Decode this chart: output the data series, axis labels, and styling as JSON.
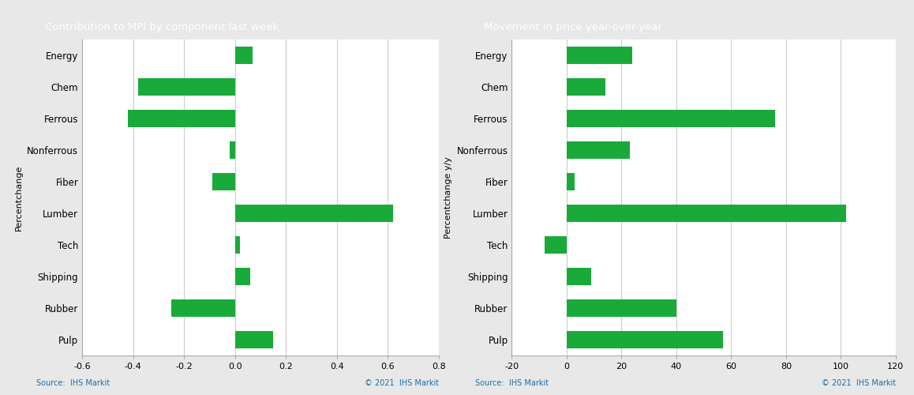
{
  "left_title": "Contribution to MPI by component last week",
  "right_title": "Movement in price year-over-year",
  "categories": [
    "Energy",
    "Chem",
    "Ferrous",
    "Nonferrous",
    "Fiber",
    "Lumber",
    "Tech",
    "Shipping",
    "Rubber",
    "Pulp"
  ],
  "left_values": [
    0.07,
    -0.38,
    -0.42,
    -0.02,
    -0.09,
    0.62,
    0.02,
    0.06,
    -0.25,
    0.15
  ],
  "right_values": [
    24,
    14,
    76,
    23,
    3,
    102,
    -8,
    9,
    40,
    57
  ],
  "bar_color": "#1aaa3a",
  "left_xlim": [
    -0.6,
    0.8
  ],
  "left_xticks": [
    -0.6,
    -0.4,
    -0.2,
    0.0,
    0.2,
    0.4,
    0.6,
    0.8
  ],
  "right_xlim": [
    -20,
    120
  ],
  "right_xticks": [
    -20,
    0,
    20,
    40,
    60,
    80,
    100,
    120
  ],
  "left_ylabel": "Percentchange",
  "right_ylabel": "Percentchange y/y",
  "source_text": "Source:  IHS Markit",
  "copyright_text": "© 2021  IHS Markit",
  "header_bg_color": "#767676",
  "header_text_color": "#ffffff",
  "outer_bg_color": "#e8e8e8",
  "plot_bg_color": "#ffffff",
  "grid_color": "#cccccc",
  "footer_text_color": "#1a6fa8",
  "bar_height": 0.55
}
